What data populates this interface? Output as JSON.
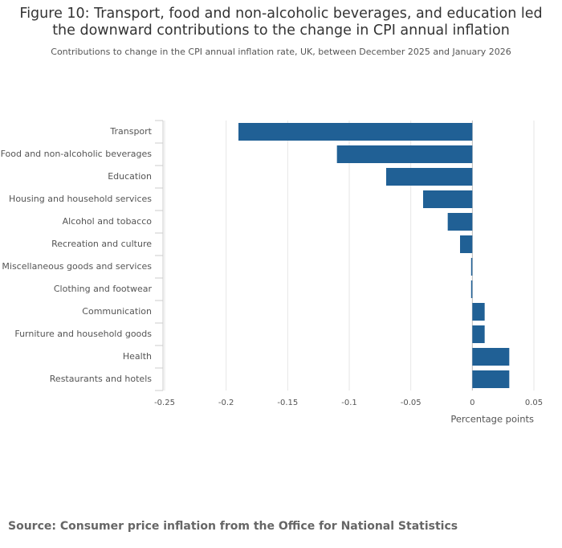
{
  "chart_data": {
    "type": "barh",
    "title": "Figure 10: Transport, food and non-alcoholic beverages, and education led the downward contributions to the change in CPI annual inflation",
    "subtitle": "Contributions to change in the CPI annual inflation rate, UK, between December 2025 and January 2026",
    "x_label": "Percentage points",
    "source": "Source: Consumer price inflation from the Office for National Statistics",
    "categories": [
      "Transport",
      "Food and non-alcoholic beverages",
      "Education",
      "Housing and household services",
      "Alcohol and tobacco",
      "Recreation and culture",
      "Miscellaneous goods and services",
      "Clothing and footwear",
      "Communication",
      "Furniture and household goods",
      "Health",
      "Restaurants and hotels"
    ],
    "values": [
      -0.19,
      -0.11,
      -0.07,
      -0.04,
      -0.02,
      -0.01,
      -0.001,
      -0.001,
      0.01,
      0.01,
      0.03,
      0.03
    ],
    "color": "#206095",
    "xlim": [
      -0.25,
      0.05
    ],
    "xticks": [
      -0.25,
      -0.2,
      -0.15,
      -0.1,
      -0.05,
      0,
      0.05
    ],
    "grid": true
  }
}
